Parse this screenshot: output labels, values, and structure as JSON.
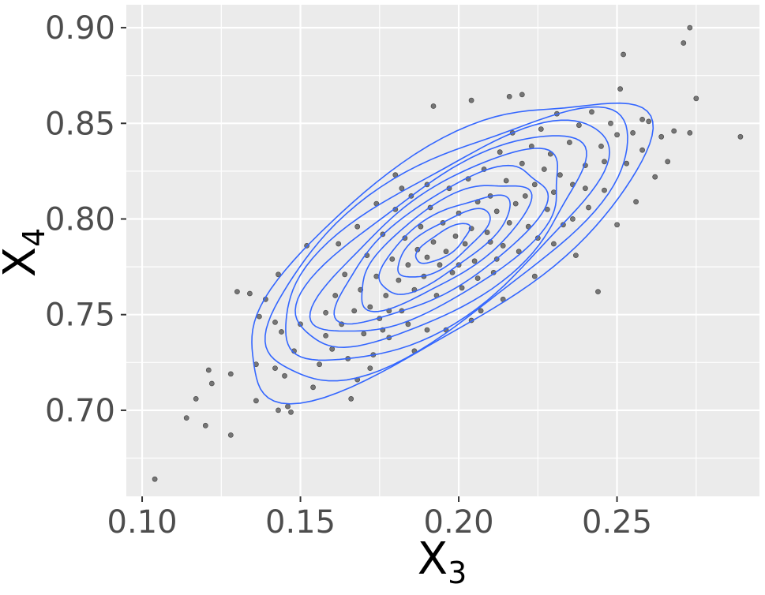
{
  "chart_data": {
    "type": "scatter",
    "title": "",
    "xlabel": "X3",
    "ylabel": "X4",
    "xlabel_main": "X",
    "xlabel_sub": "3",
    "ylabel_main": "X",
    "ylabel_sub": "4",
    "xlim": [
      0.095,
      0.295
    ],
    "ylim": [
      0.655,
      0.912
    ],
    "x_ticks": [
      0.1,
      0.15,
      0.2,
      0.25
    ],
    "y_ticks": [
      0.7,
      0.75,
      0.8,
      0.85,
      0.9
    ],
    "x_tick_labels": [
      "0.10",
      "0.15",
      "0.20",
      "0.25"
    ],
    "y_tick_labels": [
      "0.70",
      "0.75",
      "0.80",
      "0.85",
      "0.90"
    ],
    "grid": true,
    "legend": "none",
    "colors": {
      "panel": "#ebebeb",
      "grid": "#ffffff",
      "points": "#000000",
      "contour": "#3366ff"
    },
    "overlay": "2D density contour lines",
    "density": {
      "center": [
        0.195,
        0.787
      ],
      "sd_x": 0.0265,
      "sd_y": 0.0325,
      "correlation": 0.74,
      "levels": 10
    },
    "series": [
      {
        "values": [
          [
            0.104,
            0.664
          ],
          [
            0.114,
            0.696
          ],
          [
            0.117,
            0.706
          ],
          [
            0.12,
            0.692
          ],
          [
            0.121,
            0.721
          ],
          [
            0.122,
            0.714
          ],
          [
            0.128,
            0.687
          ],
          [
            0.128,
            0.719
          ],
          [
            0.13,
            0.762
          ],
          [
            0.134,
            0.761
          ],
          [
            0.136,
            0.705
          ],
          [
            0.136,
            0.724
          ],
          [
            0.137,
            0.749
          ],
          [
            0.139,
            0.758
          ],
          [
            0.142,
            0.722
          ],
          [
            0.142,
            0.746
          ],
          [
            0.143,
            0.7
          ],
          [
            0.143,
            0.771
          ],
          [
            0.144,
            0.741
          ],
          [
            0.145,
            0.718
          ],
          [
            0.146,
            0.702
          ],
          [
            0.147,
            0.699
          ],
          [
            0.148,
            0.731
          ],
          [
            0.15,
            0.745
          ],
          [
            0.152,
            0.786
          ],
          [
            0.154,
            0.712
          ],
          [
            0.156,
            0.724
          ],
          [
            0.158,
            0.739
          ],
          [
            0.16,
            0.732
          ],
          [
            0.161,
            0.76
          ],
          [
            0.163,
            0.745
          ],
          [
            0.164,
            0.771
          ],
          [
            0.165,
            0.727
          ],
          [
            0.166,
            0.706
          ],
          [
            0.167,
            0.752
          ],
          [
            0.168,
            0.716
          ],
          [
            0.169,
            0.763
          ],
          [
            0.17,
            0.74
          ],
          [
            0.171,
            0.781
          ],
          [
            0.172,
            0.754
          ],
          [
            0.173,
            0.729
          ],
          [
            0.174,
            0.77
          ],
          [
            0.175,
            0.748
          ],
          [
            0.176,
            0.792
          ],
          [
            0.177,
            0.76
          ],
          [
            0.178,
            0.738
          ],
          [
            0.179,
            0.779
          ],
          [
            0.18,
            0.805
          ],
          [
            0.181,
            0.768
          ],
          [
            0.182,
            0.752
          ],
          [
            0.183,
            0.79
          ],
          [
            0.184,
            0.776
          ],
          [
            0.185,
            0.812
          ],
          [
            0.186,
            0.763
          ],
          [
            0.187,
            0.784
          ],
          [
            0.188,
            0.796
          ],
          [
            0.189,
            0.77
          ],
          [
            0.19,
            0.78
          ],
          [
            0.191,
            0.806
          ],
          [
            0.192,
            0.788
          ],
          [
            0.193,
            0.76
          ],
          [
            0.194,
            0.776
          ],
          [
            0.195,
            0.798
          ],
          [
            0.196,
            0.783
          ],
          [
            0.197,
            0.816
          ],
          [
            0.198,
            0.772
          ],
          [
            0.199,
            0.791
          ],
          [
            0.2,
            0.803
          ],
          [
            0.201,
            0.764
          ],
          [
            0.202,
            0.787
          ],
          [
            0.203,
            0.821
          ],
          [
            0.204,
            0.795
          ],
          [
            0.205,
            0.778
          ],
          [
            0.206,
            0.809
          ],
          [
            0.207,
            0.752
          ],
          [
            0.208,
            0.826
          ],
          [
            0.209,
            0.793
          ],
          [
            0.21,
            0.812
          ],
          [
            0.211,
            0.772
          ],
          [
            0.212,
            0.804
          ],
          [
            0.213,
            0.835
          ],
          [
            0.214,
            0.786
          ],
          [
            0.215,
            0.82
          ],
          [
            0.216,
            0.798
          ],
          [
            0.217,
            0.845
          ],
          [
            0.218,
            0.808
          ],
          [
            0.219,
            0.783
          ],
          [
            0.22,
            0.829
          ],
          [
            0.221,
            0.812
          ],
          [
            0.222,
            0.796
          ],
          [
            0.223,
            0.838
          ],
          [
            0.224,
            0.818
          ],
          [
            0.225,
            0.79
          ],
          [
            0.226,
            0.847
          ],
          [
            0.227,
            0.826
          ],
          [
            0.228,
            0.805
          ],
          [
            0.229,
            0.834
          ],
          [
            0.23,
            0.814
          ],
          [
            0.231,
            0.855
          ],
          [
            0.232,
            0.823
          ],
          [
            0.233,
            0.797
          ],
          [
            0.235,
            0.84
          ],
          [
            0.236,
            0.818
          ],
          [
            0.237,
            0.781
          ],
          [
            0.238,
            0.849
          ],
          [
            0.24,
            0.828
          ],
          [
            0.241,
            0.806
          ],
          [
            0.242,
            0.856
          ],
          [
            0.244,
            0.762
          ],
          [
            0.245,
            0.838
          ],
          [
            0.246,
            0.815
          ],
          [
            0.248,
            0.85
          ],
          [
            0.25,
            0.797
          ],
          [
            0.251,
            0.868
          ],
          [
            0.252,
            0.886
          ],
          [
            0.253,
            0.829
          ],
          [
            0.255,
            0.845
          ],
          [
            0.256,
            0.809
          ],
          [
            0.258,
            0.836
          ],
          [
            0.26,
            0.851
          ],
          [
            0.262,
            0.822
          ],
          [
            0.264,
            0.843
          ],
          [
            0.266,
            0.83
          ],
          [
            0.268,
            0.846
          ],
          [
            0.271,
            0.892
          ],
          [
            0.273,
            0.9
          ],
          [
            0.273,
            0.845
          ],
          [
            0.275,
            0.863
          ],
          [
            0.289,
            0.843
          ],
          [
            0.204,
            0.862
          ],
          [
            0.216,
            0.864
          ],
          [
            0.22,
            0.865
          ],
          [
            0.192,
            0.859
          ],
          [
            0.18,
            0.823
          ],
          [
            0.172,
            0.722
          ],
          [
            0.186,
            0.731
          ],
          [
            0.196,
            0.742
          ],
          [
            0.204,
            0.747
          ],
          [
            0.176,
            0.742
          ],
          [
            0.158,
            0.751
          ],
          [
            0.162,
            0.787
          ],
          [
            0.168,
            0.796
          ],
          [
            0.174,
            0.808
          ],
          [
            0.182,
            0.816
          ],
          [
            0.19,
            0.818
          ],
          [
            0.2,
            0.776
          ],
          [
            0.21,
            0.788
          ],
          [
            0.214,
            0.758
          ],
          [
            0.224,
            0.77
          ],
          [
            0.23,
            0.787
          ],
          [
            0.236,
            0.8
          ],
          [
            0.24,
            0.816
          ],
          [
            0.246,
            0.83
          ],
          [
            0.25,
            0.844
          ],
          [
            0.258,
            0.852
          ],
          [
            0.19,
            0.742
          ],
          [
            0.184,
            0.745
          ],
          [
            0.178,
            0.752
          ],
          [
            0.206,
            0.769
          ],
          [
            0.212,
            0.779
          ]
        ]
      }
    ]
  }
}
